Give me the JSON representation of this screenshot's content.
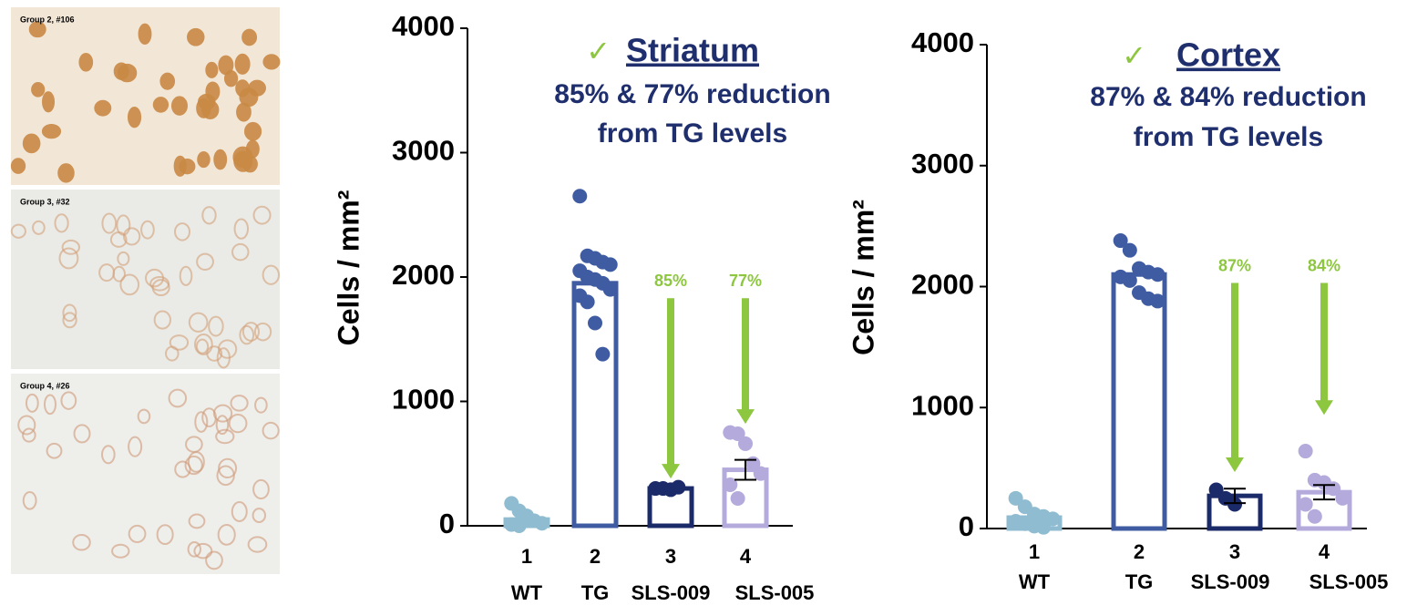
{
  "panels": [
    {
      "label": "Group 2, #106"
    },
    {
      "label": "Group 3, #32"
    },
    {
      "label": "Group 4, #26"
    }
  ],
  "chart_data": [
    {
      "type": "bar",
      "check": "✓",
      "title": "Striatum",
      "subtitle": [
        "85% & 77% reduction",
        "from TG levels"
      ],
      "ylabel": "Cells / mm²",
      "ylim": [
        0,
        4000
      ],
      "yticks": [
        0,
        1000,
        2000,
        3000,
        4000
      ],
      "categories": [
        "1",
        "2",
        "3",
        "4"
      ],
      "category_labels": [
        "WT",
        "TG",
        "SLS-009",
        "SLS-005"
      ],
      "colors": [
        "#8fbcd0",
        "#3f5ca3",
        "#1b2a68",
        "#b4abdc"
      ],
      "values": [
        50,
        1950,
        300,
        450
      ],
      "errors": [
        null,
        null,
        null,
        80
      ],
      "points": [
        [
          180,
          120,
          60,
          40,
          20,
          10,
          0,
          80
        ],
        [
          2650,
          2170,
          2150,
          2120,
          2100,
          2050,
          2000,
          1980,
          1950,
          1900,
          1850,
          1800,
          1630,
          1380
        ],
        [
          300,
          300,
          290,
          310
        ],
        [
          750,
          740,
          660,
          500,
          420,
          330,
          220
        ]
      ],
      "annotations": [
        {
          "label": "85%",
          "category": "3",
          "from": 1830,
          "to": 380
        },
        {
          "label": "77%",
          "category": "4",
          "from": 1830,
          "to": 820
        }
      ],
      "annotation_color": "#8dc63f"
    },
    {
      "type": "bar",
      "check": "✓",
      "title": "Cortex",
      "subtitle": [
        "87% & 84% reduction",
        "from TG levels"
      ],
      "ylabel": "Cells / mm²",
      "ylim": [
        0,
        4000
      ],
      "yticks": [
        0,
        1000,
        2000,
        3000,
        4000
      ],
      "categories": [
        "1",
        "2",
        "3",
        "4"
      ],
      "category_labels": [
        "WT",
        "TG",
        "SLS-009",
        "SLS-005"
      ],
      "colors": [
        "#8fbcd0",
        "#3f5ca3",
        "#1b2a68",
        "#b4abdc"
      ],
      "values": [
        90,
        2100,
        270,
        300
      ],
      "errors": [
        null,
        null,
        60,
        60
      ],
      "points": [
        [
          250,
          180,
          120,
          100,
          80,
          60,
          40,
          20,
          10
        ],
        [
          2380,
          2300,
          2150,
          2120,
          2100,
          2080,
          2050,
          1950,
          1900,
          1880
        ],
        [
          320,
          250,
          200
        ],
        [
          640,
          400,
          380,
          330,
          250,
          200,
          100
        ]
      ],
      "annotations": [
        {
          "label": "87%",
          "category": "3",
          "from": 2030,
          "to": 467
        },
        {
          "label": "84%",
          "category": "4",
          "from": 2030,
          "to": 940
        }
      ],
      "annotation_color": "#8dc63f"
    }
  ]
}
